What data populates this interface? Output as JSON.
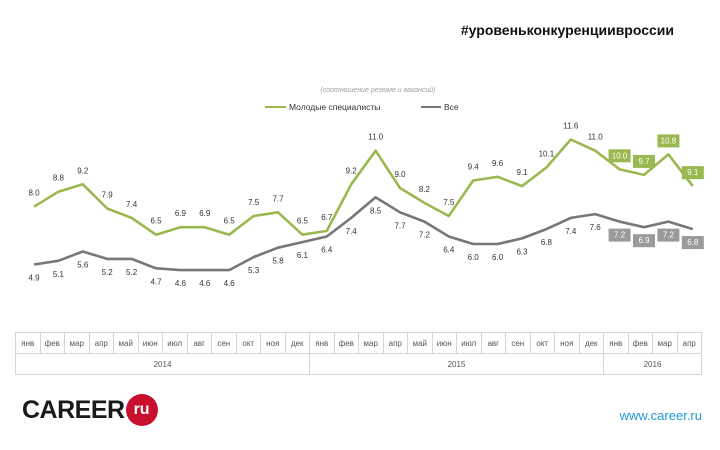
{
  "header": {
    "hashtag": "#уровеньконкуренциивроссии"
  },
  "chart_data": {
    "type": "line",
    "subtitle": "(соотношение резюме и вакансий)",
    "legend": "top-center",
    "categories": [
      "янв",
      "фев",
      "мар",
      "апр",
      "май",
      "июн",
      "июл",
      "авг",
      "сен",
      "окт",
      "ноя",
      "дек",
      "янв",
      "фев",
      "мар",
      "апр",
      "май",
      "июн",
      "июл",
      "авг",
      "сен",
      "окт",
      "ноя",
      "дек",
      "янв",
      "фев",
      "мар",
      "апр"
    ],
    "years": [
      {
        "label": "2014",
        "months": 12
      },
      {
        "label": "2015",
        "months": 12
      },
      {
        "label": "2016",
        "months": 4
      }
    ],
    "series": [
      {
        "name": "Молодые специалисты",
        "color": "#9ab850",
        "values": [
          8.0,
          8.8,
          9.2,
          7.9,
          7.4,
          6.5,
          6.9,
          6.9,
          6.5,
          7.5,
          7.7,
          6.5,
          6.7,
          9.2,
          11.0,
          9.0,
          8.2,
          7.5,
          9.4,
          9.6,
          9.1,
          10.1,
          11.6,
          11.0,
          10.0,
          9.7,
          10.8,
          9.1
        ]
      },
      {
        "name": "Все",
        "color": "#777777",
        "values": [
          4.9,
          5.1,
          5.6,
          5.2,
          5.2,
          4.7,
          4.6,
          4.6,
          4.6,
          5.3,
          5.8,
          6.1,
          6.4,
          7.4,
          8.5,
          7.7,
          7.2,
          6.4,
          6.0,
          6.0,
          6.3,
          6.8,
          7.4,
          7.6,
          7.2,
          6.9,
          7.2,
          6.8
        ]
      }
    ],
    "highlighted_from_index": 24,
    "ylim": [
      3.0,
      12.0
    ],
    "grid": false
  },
  "footer": {
    "logo_text": "CAREER",
    "logo_badge": "ru",
    "site": "www.career.ru"
  }
}
